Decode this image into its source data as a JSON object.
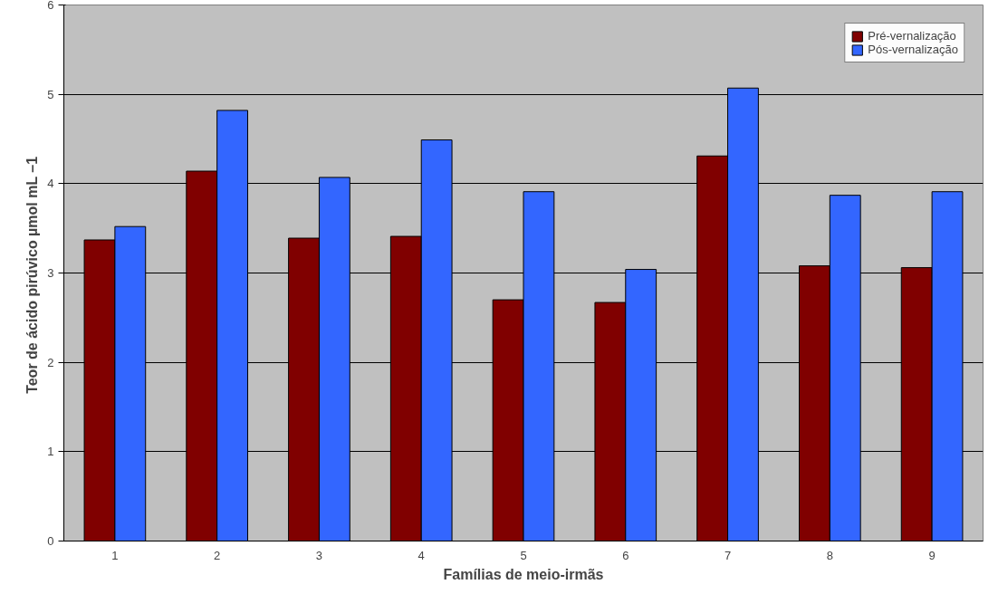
{
  "chart_data": {
    "type": "bar",
    "xlabel": "Famílias de meio-irmãs",
    "ylabel": "Teor de ácido pirúvico  µmol mL –1",
    "categories": [
      "1",
      "2",
      "3",
      "4",
      "5",
      "6",
      "7",
      "8",
      "9"
    ],
    "series": [
      {
        "name": "Pré-vernalização",
        "color": "#800000",
        "values": [
          3.37,
          4.14,
          3.39,
          3.41,
          2.7,
          2.67,
          4.31,
          3.08,
          3.06
        ]
      },
      {
        "name": "Pós-vernalização",
        "color": "#3366ff",
        "values": [
          3.52,
          4.82,
          4.07,
          4.49,
          3.91,
          3.04,
          5.07,
          3.87,
          3.91
        ]
      }
    ],
    "ylim": [
      0,
      6
    ],
    "yticks": [
      0,
      1,
      2,
      3,
      4,
      5,
      6
    ],
    "grid": "y",
    "legend": "top right"
  }
}
